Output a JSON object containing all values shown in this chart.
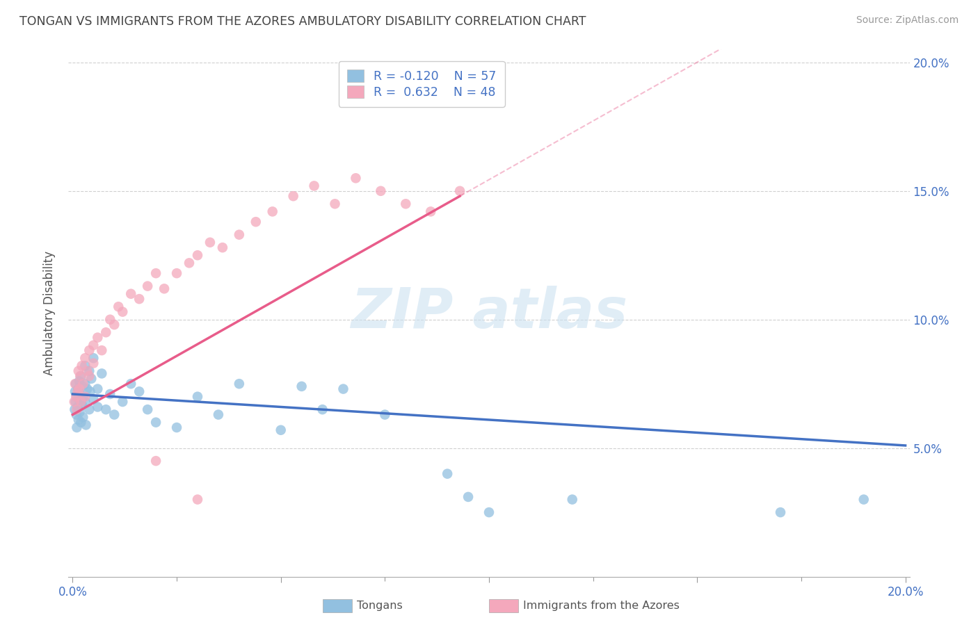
{
  "title": "TONGAN VS IMMIGRANTS FROM THE AZORES AMBULATORY DISABILITY CORRELATION CHART",
  "source_text": "Source: ZipAtlas.com",
  "ylabel": "Ambulatory Disability",
  "xlabel_tongans": "Tongans",
  "xlabel_azores": "Immigrants from the Azores",
  "r_tongans": -0.12,
  "n_tongans": 57,
  "r_azores": 0.632,
  "n_azores": 48,
  "xlim": [
    0.0,
    0.2
  ],
  "ylim": [
    0.0,
    0.2
  ],
  "color_tongans": "#92c0e0",
  "color_azores": "#f4a8bc",
  "color_tongans_line": "#4472c4",
  "color_azores_line": "#e85c8a",
  "color_tongans_line_ext": "#c8d8ee",
  "grid_color": "#d0d0d0",
  "background_color": "#ffffff",
  "title_color": "#444444",
  "axis_label_color": "#555555",
  "tick_color": "#4472c4",
  "legend_r_color": "#4472c4",
  "tongans_x": [
    0.0005,
    0.0006,
    0.0007,
    0.0008,
    0.0009,
    0.001,
    0.001,
    0.0012,
    0.0013,
    0.0014,
    0.0015,
    0.0016,
    0.0017,
    0.0018,
    0.002,
    0.002,
    0.0022,
    0.0023,
    0.0025,
    0.0026,
    0.003,
    0.003,
    0.003,
    0.0032,
    0.0035,
    0.004,
    0.004,
    0.0042,
    0.0045,
    0.005,
    0.005,
    0.006,
    0.006,
    0.007,
    0.008,
    0.009,
    0.01,
    0.012,
    0.014,
    0.016,
    0.018,
    0.02,
    0.025,
    0.03,
    0.035,
    0.04,
    0.05,
    0.055,
    0.06,
    0.065,
    0.075,
    0.09,
    0.095,
    0.1,
    0.12,
    0.17,
    0.19
  ],
  "tongans_y": [
    0.065,
    0.072,
    0.068,
    0.075,
    0.063,
    0.07,
    0.058,
    0.066,
    0.073,
    0.061,
    0.069,
    0.076,
    0.064,
    0.071,
    0.06,
    0.078,
    0.067,
    0.074,
    0.062,
    0.07,
    0.075,
    0.068,
    0.082,
    0.059,
    0.073,
    0.08,
    0.065,
    0.072,
    0.077,
    0.069,
    0.085,
    0.073,
    0.066,
    0.079,
    0.065,
    0.071,
    0.063,
    0.068,
    0.075,
    0.072,
    0.065,
    0.06,
    0.058,
    0.07,
    0.063,
    0.075,
    0.057,
    0.074,
    0.065,
    0.073,
    0.063,
    0.04,
    0.031,
    0.025,
    0.03,
    0.025,
    0.03
  ],
  "azores_x": [
    0.0004,
    0.0006,
    0.0008,
    0.001,
    0.0012,
    0.0014,
    0.0016,
    0.0018,
    0.002,
    0.0022,
    0.0025,
    0.003,
    0.003,
    0.0035,
    0.004,
    0.004,
    0.005,
    0.005,
    0.006,
    0.007,
    0.008,
    0.009,
    0.01,
    0.011,
    0.012,
    0.014,
    0.016,
    0.018,
    0.02,
    0.022,
    0.025,
    0.028,
    0.03,
    0.033,
    0.036,
    0.04,
    0.044,
    0.048,
    0.053,
    0.058,
    0.063,
    0.068,
    0.074,
    0.08,
    0.086,
    0.093,
    0.02,
    0.03
  ],
  "azores_y": [
    0.068,
    0.075,
    0.07,
    0.065,
    0.072,
    0.08,
    0.073,
    0.078,
    0.068,
    0.082,
    0.075,
    0.07,
    0.085,
    0.08,
    0.088,
    0.078,
    0.083,
    0.09,
    0.093,
    0.088,
    0.095,
    0.1,
    0.098,
    0.105,
    0.103,
    0.11,
    0.108,
    0.113,
    0.118,
    0.112,
    0.118,
    0.122,
    0.125,
    0.13,
    0.128,
    0.133,
    0.138,
    0.142,
    0.148,
    0.152,
    0.145,
    0.155,
    0.15,
    0.145,
    0.142,
    0.15,
    0.045,
    0.03
  ]
}
